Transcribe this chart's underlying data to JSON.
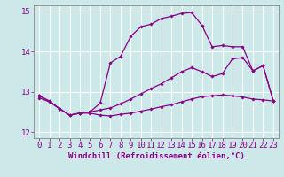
{
  "xlabel": "Windchill (Refroidissement éolien,°C)",
  "background_color": "#cce8e8",
  "grid_color": "#ffffff",
  "line_color": "#880088",
  "x_labels": [
    "0",
    "1",
    "2",
    "3",
    "4",
    "5",
    "6",
    "7",
    "8",
    "9",
    "10",
    "11",
    "12",
    "13",
    "14",
    "15",
    "16",
    "17",
    "18",
    "19",
    "20",
    "21",
    "22",
    "23"
  ],
  "ylim": [
    11.85,
    15.15
  ],
  "yticks": [
    12,
    13,
    14,
    15
  ],
  "line1_y": [
    12.85,
    12.75,
    12.58,
    12.42,
    12.47,
    12.47,
    12.42,
    12.4,
    12.44,
    12.47,
    12.52,
    12.57,
    12.63,
    12.68,
    12.75,
    12.82,
    12.88,
    12.9,
    12.92,
    12.9,
    12.87,
    12.82,
    12.8,
    12.77
  ],
  "line2_y": [
    12.9,
    12.77,
    12.58,
    12.42,
    12.47,
    12.5,
    12.55,
    12.6,
    12.7,
    12.82,
    12.95,
    13.08,
    13.2,
    13.35,
    13.5,
    13.6,
    13.5,
    13.38,
    13.45,
    13.82,
    13.85,
    13.52,
    13.65,
    12.78
  ],
  "line3_y": [
    12.9,
    12.77,
    12.58,
    12.42,
    12.47,
    12.5,
    12.72,
    13.72,
    13.88,
    14.38,
    14.62,
    14.68,
    14.82,
    14.88,
    14.95,
    14.97,
    14.65,
    14.12,
    14.15,
    14.12,
    14.12,
    13.52,
    13.65,
    12.78
  ],
  "xlabel_fontsize": 6.5,
  "tick_fontsize": 6.5
}
